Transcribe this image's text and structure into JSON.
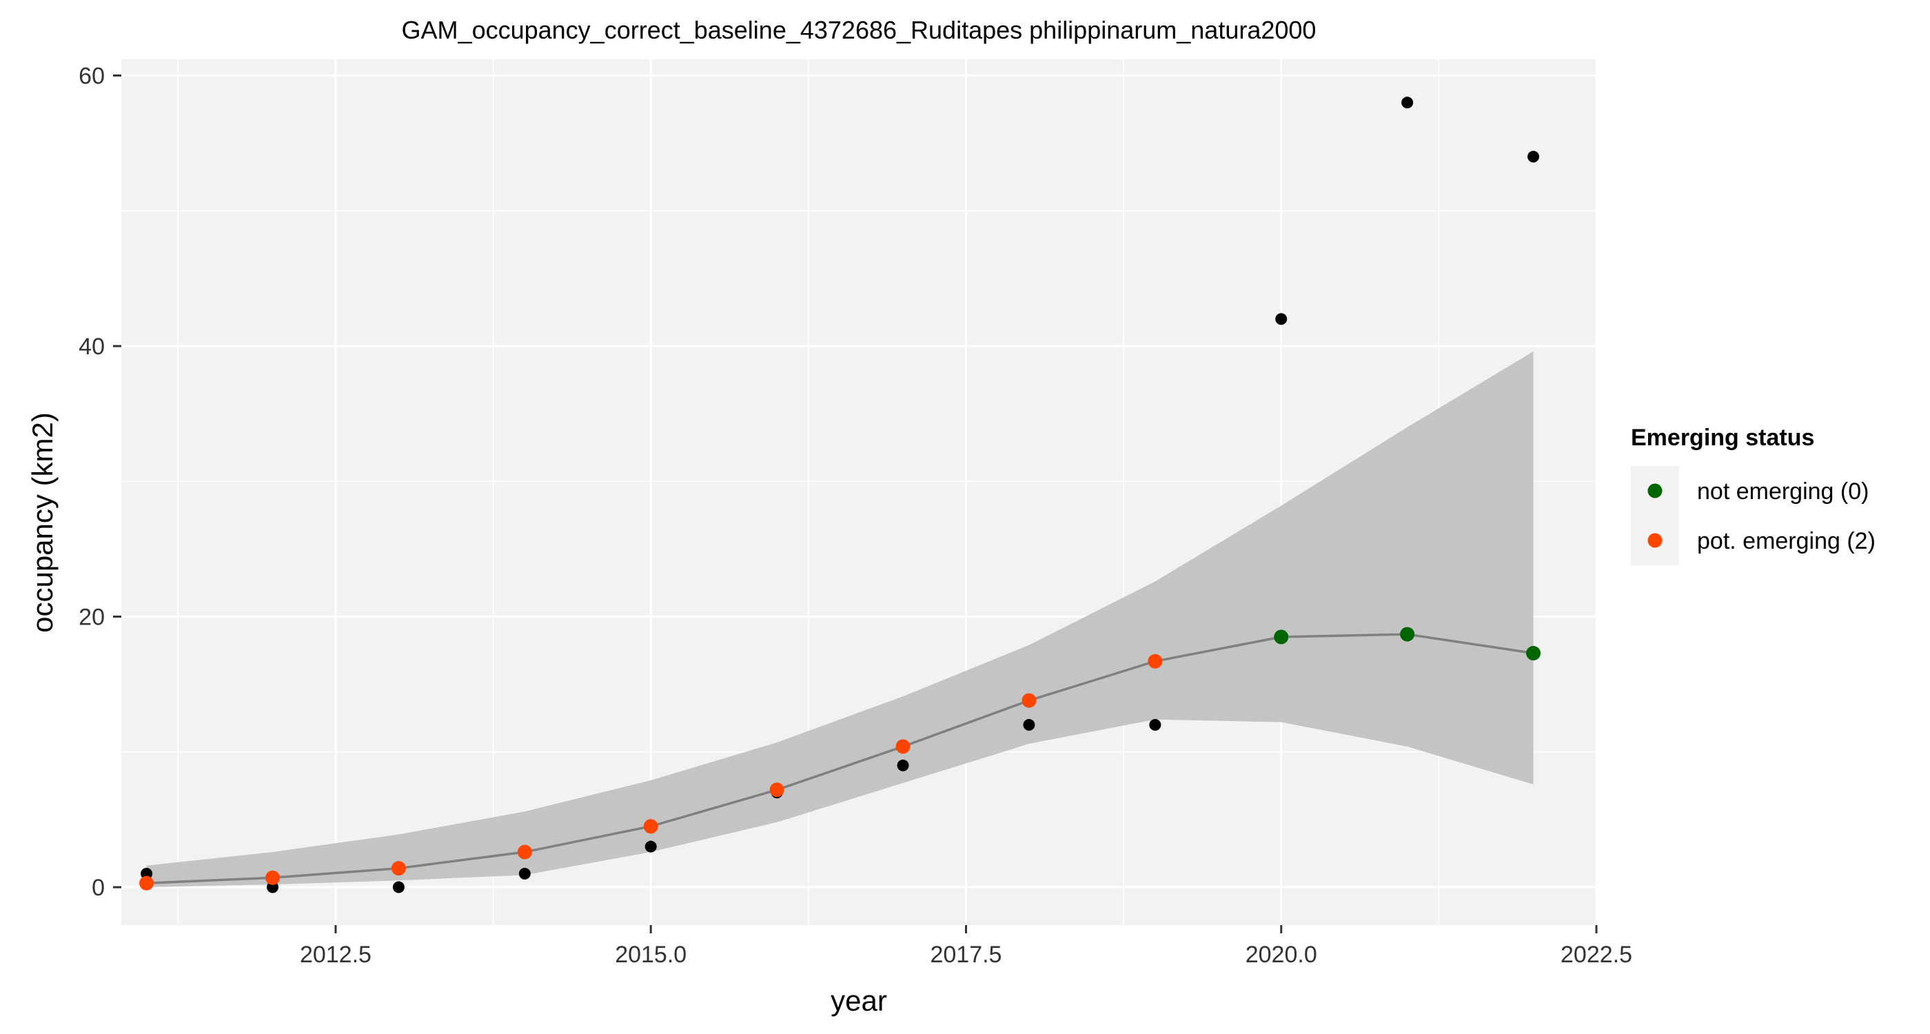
{
  "chart_data": {
    "type": "scatter",
    "title": "GAM_occupancy_correct_baseline_4372686_Ruditapes philippinarum_natura2000",
    "xlabel": "year",
    "ylabel": "occupancy (km2)",
    "xlim": [
      2010.8,
      2022.5
    ],
    "ylim": [
      -2.8,
      61.2
    ],
    "x_ticks": [
      2012.5,
      2015.0,
      2017.5,
      2020.0,
      2022.5
    ],
    "x_tick_labels": [
      "2012.5",
      "2015.0",
      "2017.5",
      "2020.0",
      "2022.5"
    ],
    "y_ticks": [
      0,
      20,
      40,
      60
    ],
    "y_tick_labels": [
      "0",
      "20",
      "40",
      "60"
    ],
    "grid": true,
    "legend": {
      "title": "Emerging status",
      "position": "right",
      "entries": [
        {
          "label": "not emerging (0)",
          "color": "#006400"
        },
        {
          "label": "pot. emerging (2)",
          "color": "#ff4500"
        }
      ]
    },
    "observed": {
      "color": "#000000",
      "x": [
        2011,
        2012,
        2013,
        2014,
        2015,
        2016,
        2017,
        2018,
        2019,
        2020,
        2021,
        2022
      ],
      "y": [
        1,
        0,
        0,
        1,
        3,
        7,
        9,
        12,
        12,
        42,
        58,
        54
      ]
    },
    "fit": {
      "color": "#808080",
      "x": [
        2011,
        2012,
        2013,
        2014,
        2015,
        2016,
        2017,
        2018,
        2019,
        2020,
        2021,
        2022
      ],
      "y": [
        0.3,
        0.7,
        1.4,
        2.6,
        4.5,
        7.2,
        10.4,
        13.8,
        16.7,
        18.5,
        18.7,
        17.3
      ],
      "lower": [
        0.0,
        0.2,
        0.5,
        0.9,
        2.6,
        4.8,
        7.7,
        10.6,
        12.4,
        12.2,
        10.4,
        7.6
      ],
      "upper": [
        1.6,
        2.6,
        3.9,
        5.6,
        7.9,
        10.7,
        14.1,
        17.9,
        22.6,
        28.2,
        34.0,
        39.6
      ],
      "band_color": "#c4c4c4"
    },
    "status_points": {
      "x": [
        2011,
        2012,
        2013,
        2014,
        2015,
        2016,
        2017,
        2018,
        2019,
        2020,
        2021,
        2022
      ],
      "y": [
        0.3,
        0.7,
        1.4,
        2.6,
        4.5,
        7.2,
        10.4,
        13.8,
        16.7,
        18.5,
        18.7,
        17.3
      ],
      "status": [
        "pot. emerging (2)",
        "pot. emerging (2)",
        "pot. emerging (2)",
        "pot. emerging (2)",
        "pot. emerging (2)",
        "pot. emerging (2)",
        "pot. emerging (2)",
        "pot. emerging (2)",
        "pot. emerging (2)",
        "not emerging (0)",
        "not emerging (0)",
        "not emerging (0)"
      ]
    },
    "colors": {
      "panel_background": "#f2f2f2",
      "grid": "#ffffff"
    }
  }
}
